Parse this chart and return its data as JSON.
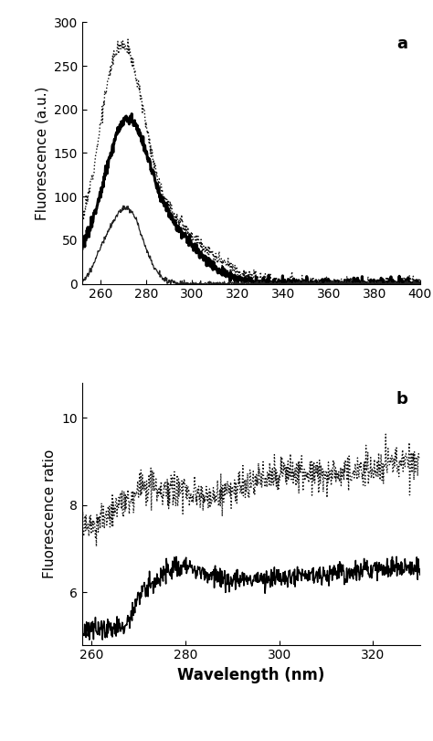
{
  "panel_a": {
    "xlim": [
      252,
      400
    ],
    "ylim": [
      0,
      300
    ],
    "yticks": [
      0,
      50,
      100,
      150,
      200,
      250,
      300
    ],
    "xticks": [
      260,
      280,
      300,
      320,
      340,
      360,
      380,
      400
    ],
    "ylabel": "Fluorescence (a.u.)",
    "label": "a"
  },
  "panel_b": {
    "xlim": [
      258,
      330
    ],
    "ylim": [
      4.8,
      10.8
    ],
    "yticks": [
      6,
      8,
      10
    ],
    "xticks": [
      260,
      280,
      300,
      320
    ],
    "ylabel": "Fluorescence ratio",
    "xlabel": "Wavelength (nm)",
    "label": "b"
  }
}
